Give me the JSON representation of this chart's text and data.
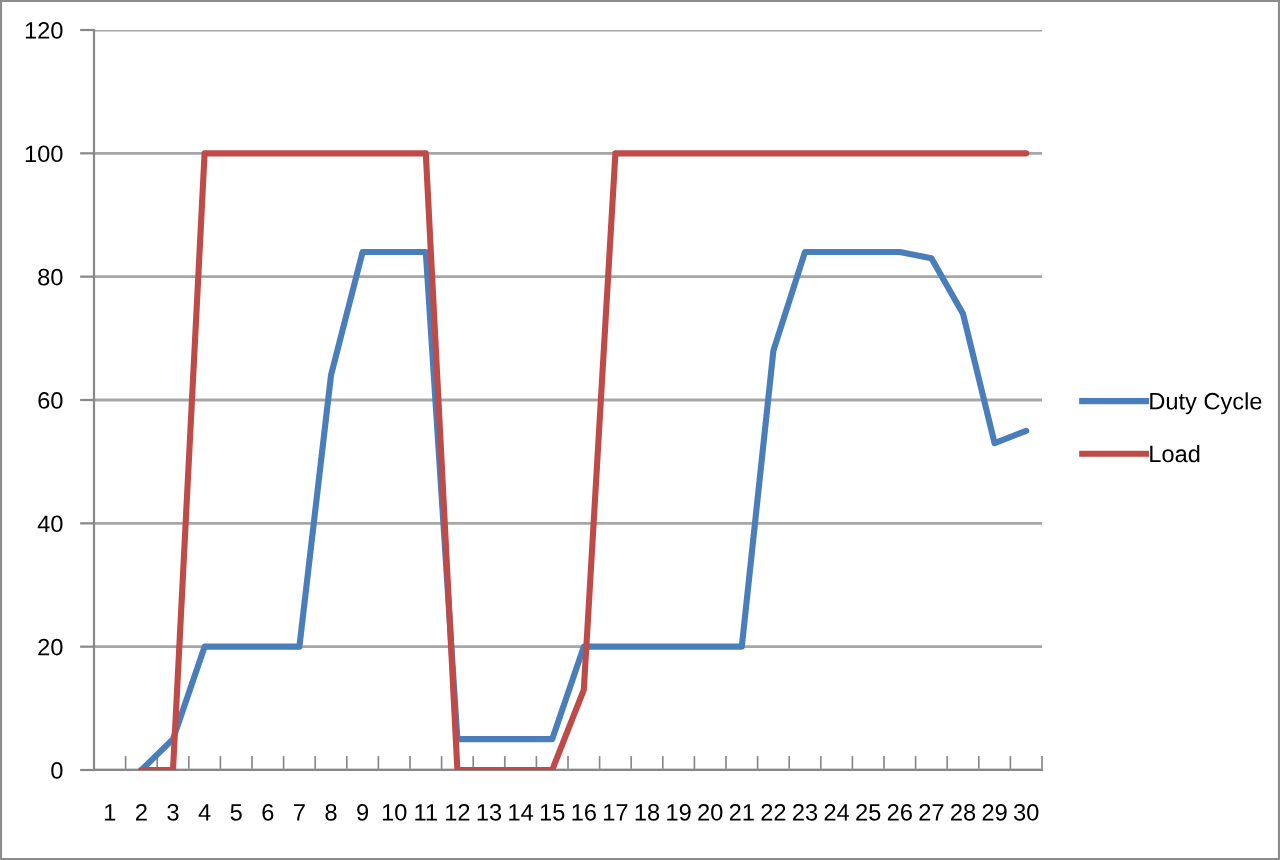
{
  "chart_data": {
    "type": "line",
    "categories": [
      "1",
      "2",
      "3",
      "4",
      "5",
      "6",
      "7",
      "8",
      "9",
      "10",
      "11",
      "12",
      "13",
      "14",
      "15",
      "16",
      "17",
      "18",
      "19",
      "20",
      "21",
      "22",
      "23",
      "24",
      "25",
      "26",
      "27",
      "28",
      "29",
      "30"
    ],
    "series": [
      {
        "name": "Duty Cycle",
        "color": "#4a7ebb",
        "values": [
          null,
          0,
          5,
          20,
          20,
          20,
          20,
          64,
          84,
          84,
          84,
          5,
          5,
          5,
          5,
          20,
          20,
          20,
          20,
          20,
          20,
          68,
          84,
          84,
          84,
          84,
          83,
          74,
          53,
          55
        ]
      },
      {
        "name": "Load",
        "color": "#be4b48",
        "values": [
          null,
          0,
          0,
          100,
          100,
          100,
          100,
          100,
          100,
          100,
          100,
          0,
          0,
          0,
          0,
          13,
          100,
          100,
          100,
          100,
          100,
          100,
          100,
          100,
          100,
          100,
          100,
          100,
          100,
          100
        ]
      }
    ],
    "ylim": [
      0,
      120
    ],
    "yticks": [
      0,
      20,
      40,
      60,
      80,
      100,
      120
    ],
    "grid": "y",
    "legend": "right",
    "marker": "none",
    "line_style": "solid"
  }
}
